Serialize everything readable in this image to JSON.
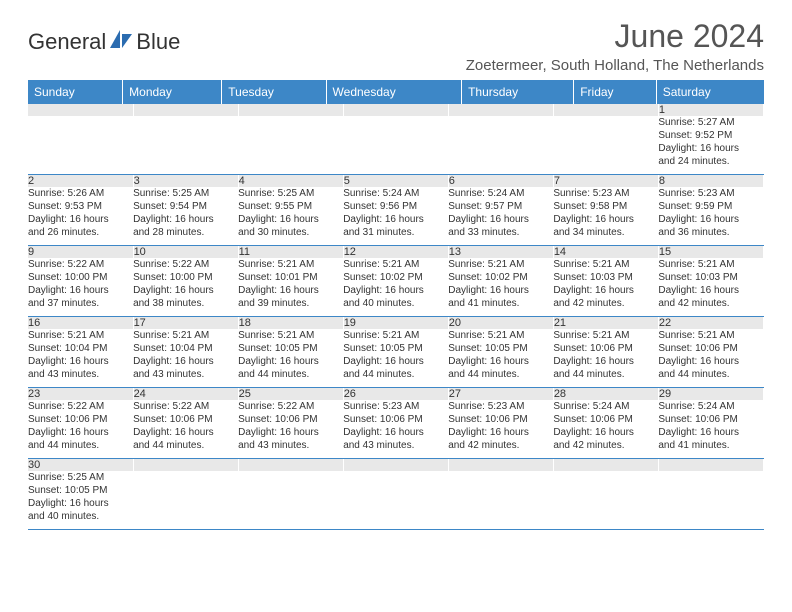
{
  "brand": {
    "name1": "General",
    "name2": "Blue"
  },
  "title": "June 2024",
  "location": "Zoetermeer, South Holland, The Netherlands",
  "colors": {
    "header_bg": "#3d87c7",
    "header_text": "#ffffff",
    "daynum_bg": "#e8e8e8",
    "text": "#333333",
    "divider": "#3d87c7"
  },
  "day_headers": [
    "Sunday",
    "Monday",
    "Tuesday",
    "Wednesday",
    "Thursday",
    "Friday",
    "Saturday"
  ],
  "weeks": [
    [
      {
        "n": "",
        "sr": "",
        "ss": "",
        "dl1": "",
        "dl2": ""
      },
      {
        "n": "",
        "sr": "",
        "ss": "",
        "dl1": "",
        "dl2": ""
      },
      {
        "n": "",
        "sr": "",
        "ss": "",
        "dl1": "",
        "dl2": ""
      },
      {
        "n": "",
        "sr": "",
        "ss": "",
        "dl1": "",
        "dl2": ""
      },
      {
        "n": "",
        "sr": "",
        "ss": "",
        "dl1": "",
        "dl2": ""
      },
      {
        "n": "",
        "sr": "",
        "ss": "",
        "dl1": "",
        "dl2": ""
      },
      {
        "n": "1",
        "sr": "Sunrise: 5:27 AM",
        "ss": "Sunset: 9:52 PM",
        "dl1": "Daylight: 16 hours",
        "dl2": "and 24 minutes."
      }
    ],
    [
      {
        "n": "2",
        "sr": "Sunrise: 5:26 AM",
        "ss": "Sunset: 9:53 PM",
        "dl1": "Daylight: 16 hours",
        "dl2": "and 26 minutes."
      },
      {
        "n": "3",
        "sr": "Sunrise: 5:25 AM",
        "ss": "Sunset: 9:54 PM",
        "dl1": "Daylight: 16 hours",
        "dl2": "and 28 minutes."
      },
      {
        "n": "4",
        "sr": "Sunrise: 5:25 AM",
        "ss": "Sunset: 9:55 PM",
        "dl1": "Daylight: 16 hours",
        "dl2": "and 30 minutes."
      },
      {
        "n": "5",
        "sr": "Sunrise: 5:24 AM",
        "ss": "Sunset: 9:56 PM",
        "dl1": "Daylight: 16 hours",
        "dl2": "and 31 minutes."
      },
      {
        "n": "6",
        "sr": "Sunrise: 5:24 AM",
        "ss": "Sunset: 9:57 PM",
        "dl1": "Daylight: 16 hours",
        "dl2": "and 33 minutes."
      },
      {
        "n": "7",
        "sr": "Sunrise: 5:23 AM",
        "ss": "Sunset: 9:58 PM",
        "dl1": "Daylight: 16 hours",
        "dl2": "and 34 minutes."
      },
      {
        "n": "8",
        "sr": "Sunrise: 5:23 AM",
        "ss": "Sunset: 9:59 PM",
        "dl1": "Daylight: 16 hours",
        "dl2": "and 36 minutes."
      }
    ],
    [
      {
        "n": "9",
        "sr": "Sunrise: 5:22 AM",
        "ss": "Sunset: 10:00 PM",
        "dl1": "Daylight: 16 hours",
        "dl2": "and 37 minutes."
      },
      {
        "n": "10",
        "sr": "Sunrise: 5:22 AM",
        "ss": "Sunset: 10:00 PM",
        "dl1": "Daylight: 16 hours",
        "dl2": "and 38 minutes."
      },
      {
        "n": "11",
        "sr": "Sunrise: 5:21 AM",
        "ss": "Sunset: 10:01 PM",
        "dl1": "Daylight: 16 hours",
        "dl2": "and 39 minutes."
      },
      {
        "n": "12",
        "sr": "Sunrise: 5:21 AM",
        "ss": "Sunset: 10:02 PM",
        "dl1": "Daylight: 16 hours",
        "dl2": "and 40 minutes."
      },
      {
        "n": "13",
        "sr": "Sunrise: 5:21 AM",
        "ss": "Sunset: 10:02 PM",
        "dl1": "Daylight: 16 hours",
        "dl2": "and 41 minutes."
      },
      {
        "n": "14",
        "sr": "Sunrise: 5:21 AM",
        "ss": "Sunset: 10:03 PM",
        "dl1": "Daylight: 16 hours",
        "dl2": "and 42 minutes."
      },
      {
        "n": "15",
        "sr": "Sunrise: 5:21 AM",
        "ss": "Sunset: 10:03 PM",
        "dl1": "Daylight: 16 hours",
        "dl2": "and 42 minutes."
      }
    ],
    [
      {
        "n": "16",
        "sr": "Sunrise: 5:21 AM",
        "ss": "Sunset: 10:04 PM",
        "dl1": "Daylight: 16 hours",
        "dl2": "and 43 minutes."
      },
      {
        "n": "17",
        "sr": "Sunrise: 5:21 AM",
        "ss": "Sunset: 10:04 PM",
        "dl1": "Daylight: 16 hours",
        "dl2": "and 43 minutes."
      },
      {
        "n": "18",
        "sr": "Sunrise: 5:21 AM",
        "ss": "Sunset: 10:05 PM",
        "dl1": "Daylight: 16 hours",
        "dl2": "and 44 minutes."
      },
      {
        "n": "19",
        "sr": "Sunrise: 5:21 AM",
        "ss": "Sunset: 10:05 PM",
        "dl1": "Daylight: 16 hours",
        "dl2": "and 44 minutes."
      },
      {
        "n": "20",
        "sr": "Sunrise: 5:21 AM",
        "ss": "Sunset: 10:05 PM",
        "dl1": "Daylight: 16 hours",
        "dl2": "and 44 minutes."
      },
      {
        "n": "21",
        "sr": "Sunrise: 5:21 AM",
        "ss": "Sunset: 10:06 PM",
        "dl1": "Daylight: 16 hours",
        "dl2": "and 44 minutes."
      },
      {
        "n": "22",
        "sr": "Sunrise: 5:21 AM",
        "ss": "Sunset: 10:06 PM",
        "dl1": "Daylight: 16 hours",
        "dl2": "and 44 minutes."
      }
    ],
    [
      {
        "n": "23",
        "sr": "Sunrise: 5:22 AM",
        "ss": "Sunset: 10:06 PM",
        "dl1": "Daylight: 16 hours",
        "dl2": "and 44 minutes."
      },
      {
        "n": "24",
        "sr": "Sunrise: 5:22 AM",
        "ss": "Sunset: 10:06 PM",
        "dl1": "Daylight: 16 hours",
        "dl2": "and 44 minutes."
      },
      {
        "n": "25",
        "sr": "Sunrise: 5:22 AM",
        "ss": "Sunset: 10:06 PM",
        "dl1": "Daylight: 16 hours",
        "dl2": "and 43 minutes."
      },
      {
        "n": "26",
        "sr": "Sunrise: 5:23 AM",
        "ss": "Sunset: 10:06 PM",
        "dl1": "Daylight: 16 hours",
        "dl2": "and 43 minutes."
      },
      {
        "n": "27",
        "sr": "Sunrise: 5:23 AM",
        "ss": "Sunset: 10:06 PM",
        "dl1": "Daylight: 16 hours",
        "dl2": "and 42 minutes."
      },
      {
        "n": "28",
        "sr": "Sunrise: 5:24 AM",
        "ss": "Sunset: 10:06 PM",
        "dl1": "Daylight: 16 hours",
        "dl2": "and 42 minutes."
      },
      {
        "n": "29",
        "sr": "Sunrise: 5:24 AM",
        "ss": "Sunset: 10:06 PM",
        "dl1": "Daylight: 16 hours",
        "dl2": "and 41 minutes."
      }
    ],
    [
      {
        "n": "30",
        "sr": "Sunrise: 5:25 AM",
        "ss": "Sunset: 10:05 PM",
        "dl1": "Daylight: 16 hours",
        "dl2": "and 40 minutes."
      },
      {
        "n": "",
        "sr": "",
        "ss": "",
        "dl1": "",
        "dl2": ""
      },
      {
        "n": "",
        "sr": "",
        "ss": "",
        "dl1": "",
        "dl2": ""
      },
      {
        "n": "",
        "sr": "",
        "ss": "",
        "dl1": "",
        "dl2": ""
      },
      {
        "n": "",
        "sr": "",
        "ss": "",
        "dl1": "",
        "dl2": ""
      },
      {
        "n": "",
        "sr": "",
        "ss": "",
        "dl1": "",
        "dl2": ""
      },
      {
        "n": "",
        "sr": "",
        "ss": "",
        "dl1": "",
        "dl2": ""
      }
    ]
  ]
}
